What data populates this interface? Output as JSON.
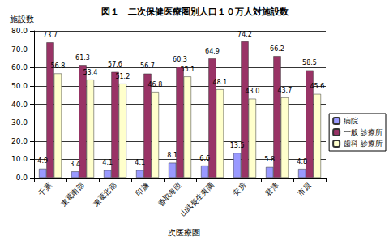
{
  "chart_data": {
    "type": "bar",
    "title": "図１　二次保健医療圏別人口１０万人対施設数",
    "x_label": "二次医療圏",
    "y_label": "施設数",
    "categories": [
      "千葉",
      "東葛南部",
      "東葛北部",
      "印旛",
      "香取海匝",
      "山武長生夷隅",
      "安房",
      "君津",
      "市原"
    ],
    "series": [
      {
        "name": "病院",
        "color": "#9999ff",
        "values": [
          4.9,
          3.4,
          4.1,
          4.1,
          8.1,
          6.6,
          13.5,
          5.8,
          4.8
        ],
        "value_labels": [
          "4.9",
          "3.4",
          "4.1",
          "4.1",
          "8.1",
          "6.6",
          "13.5",
          "5.8",
          "4.8"
        ]
      },
      {
        "name": "一般 診療所",
        "color": "#993366",
        "values": [
          73.7,
          61.3,
          57.6,
          56.7,
          60.3,
          64.9,
          74.2,
          66.2,
          58.5
        ],
        "value_labels": [
          "73.7",
          "61.3",
          "57.6",
          "56.7",
          "60.3",
          "64.9",
          "74.2",
          "66.2",
          "58.5"
        ]
      },
      {
        "name": "歯科 診療所",
        "color": "#ffffcc",
        "values": [
          56.8,
          53.4,
          51.2,
          46.8,
          55.1,
          48.1,
          43.0,
          43.7,
          45.6
        ],
        "value_labels": [
          "56.8",
          "53.4",
          "51.2",
          "46.8",
          "55.1",
          "48.1",
          "43.0",
          "43.7",
          "45.6"
        ]
      }
    ],
    "ylim": [
      0,
      80
    ],
    "yticks": [
      {
        "value": 0,
        "label": "0.0"
      },
      {
        "value": 10,
        "label": "10.0"
      },
      {
        "value": 20,
        "label": "20.0"
      },
      {
        "value": 30,
        "label": "30.0"
      },
      {
        "value": 40,
        "label": "40.0"
      },
      {
        "value": 50,
        "label": "50.0"
      },
      {
        "value": 60,
        "label": "60.0"
      },
      {
        "value": 70,
        "label": "70.0"
      },
      {
        "value": 80,
        "label": "80.0"
      }
    ],
    "grid": true,
    "legend": "right",
    "data_labels": true
  }
}
